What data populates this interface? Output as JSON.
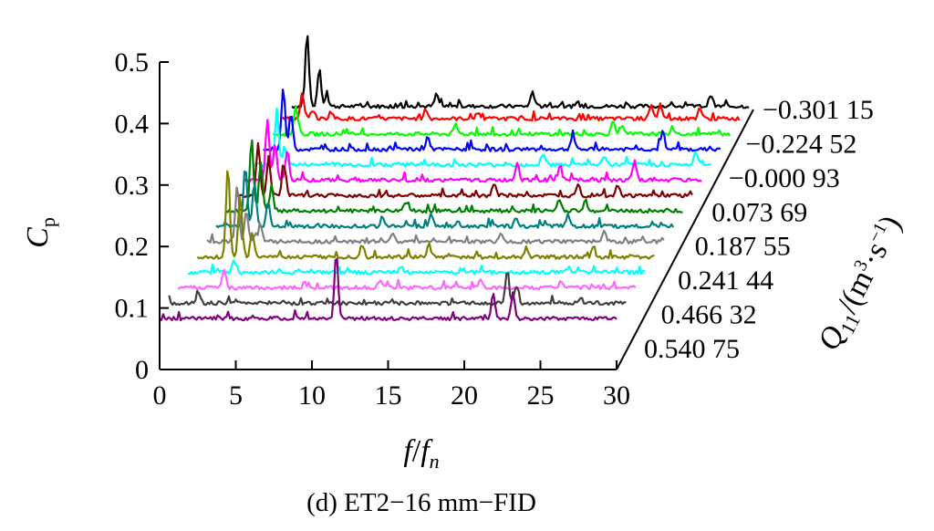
{
  "chart_data": {
    "type": "line",
    "subtype": "waterfall-3d",
    "caption": "(d) ET2−16 mm−FID",
    "xlabel": {
      "main": "f",
      "slash": "/",
      "italic_f": "f",
      "sub": "n"
    },
    "ylabel": {
      "main": "C",
      "sub": "p"
    },
    "zlabel": {
      "main": "Q",
      "sub": "11",
      "unit": "/(m",
      "sup1": "3",
      "mid": "·s",
      "sup2": "−1",
      "end": ")"
    },
    "xlim": [
      0,
      30
    ],
    "ylim": [
      0,
      0.5
    ],
    "xticks": [
      "0",
      "5",
      "10",
      "15",
      "20",
      "25",
      "30"
    ],
    "yticks": [
      "0",
      "0.1",
      "0.2",
      "0.3",
      "0.4",
      "0.5"
    ],
    "z_tick_labels": [
      "−0.301 15",
      "−0.224 52",
      "−0.000 93",
      "0.073 69",
      "0.187 55",
      "0.241 44",
      "0.466 32",
      "0.540 75"
    ],
    "series": [
      {
        "color": "#000000",
        "base": 0.425,
        "peaks": [
          [
            1.0,
            0.12
          ],
          [
            1.8,
            0.06
          ],
          [
            2.3,
            0.015
          ],
          [
            9.5,
            0.02
          ],
          [
            15.8,
            0.025
          ],
          [
            27.5,
            0.02
          ],
          [
            30.5,
            0.03
          ]
        ]
      },
      {
        "color": "#ff0000",
        "base": 0.405,
        "peaks": [
          [
            1.3,
            0.04
          ],
          [
            2.0,
            0.015
          ],
          [
            3.2,
            0.012
          ],
          [
            9.4,
            0.015
          ],
          [
            12.8,
            0.01
          ],
          [
            24.2,
            0.02
          ],
          [
            24.8,
            0.025
          ],
          [
            27.4,
            0.018
          ]
        ]
      },
      {
        "color": "#00ff00",
        "base": 0.38,
        "peaks": [
          [
            1.5,
            0.045
          ],
          [
            12.0,
            0.015
          ],
          [
            22.3,
            0.018
          ],
          [
            22.9,
            0.012
          ],
          [
            26.2,
            0.01
          ]
        ]
      },
      {
        "color": "#0000ff",
        "base": 0.355,
        "peaks": [
          [
            1.3,
            0.1
          ],
          [
            1.8,
            0.06
          ],
          [
            10.8,
            0.02
          ],
          [
            20.3,
            0.025
          ],
          [
            26.2,
            0.03
          ]
        ]
      },
      {
        "color": "#00ffff",
        "base": 0.33,
        "peaks": [
          [
            1.5,
            0.09
          ],
          [
            2.0,
            0.03
          ],
          [
            19.0,
            0.02
          ],
          [
            23.0,
            0.015
          ],
          [
            29.0,
            0.02
          ]
        ]
      },
      {
        "color": "#ff00ff",
        "base": 0.305,
        "peaks": [
          [
            1.5,
            0.1
          ],
          [
            2.0,
            0.06
          ],
          [
            2.8,
            0.05
          ],
          [
            17.9,
            0.03
          ],
          [
            20.7,
            0.025
          ],
          [
            25.6,
            0.03
          ]
        ]
      },
      {
        "color": "#800000",
        "base": 0.28,
        "peaks": [
          [
            1.5,
            0.08
          ],
          [
            2.2,
            0.06
          ],
          [
            3.2,
            0.05
          ],
          [
            17.0,
            0.02
          ],
          [
            22.5,
            0.02
          ],
          [
            25.1,
            0.018
          ]
        ]
      },
      {
        "color": "#008000",
        "base": 0.255,
        "peaks": [
          [
            1.7,
            0.12
          ],
          [
            2.3,
            0.08
          ],
          [
            3.0,
            0.04
          ],
          [
            11.8,
            0.015
          ],
          [
            21.9,
            0.02
          ],
          [
            23.6,
            0.018
          ]
        ]
      },
      {
        "color": "#008080",
        "base": 0.23,
        "peaks": [
          [
            1.9,
            0.1
          ],
          [
            2.5,
            0.07
          ],
          [
            3.4,
            0.04
          ],
          [
            10.9,
            0.015
          ],
          [
            14.1,
            0.02
          ],
          [
            19.7,
            0.015
          ],
          [
            23.1,
            0.02
          ]
        ]
      },
      {
        "color": "#808080",
        "base": 0.205,
        "peaks": [
          [
            2.0,
            0.09
          ],
          [
            2.6,
            0.05
          ],
          [
            3.5,
            0.03
          ],
          [
            12.2,
            0.015
          ],
          [
            19.3,
            0.015
          ],
          [
            26.1,
            0.015
          ]
        ]
      },
      {
        "color": "#808000",
        "base": 0.18,
        "peaks": [
          [
            2.0,
            0.15
          ],
          [
            2.8,
            0.1
          ],
          [
            3.6,
            0.04
          ],
          [
            10.8,
            0.02
          ],
          [
            15.2,
            0.02
          ],
          [
            21.6,
            0.015
          ],
          [
            26.0,
            0.015
          ]
        ]
      },
      {
        "color": "#00ffff",
        "base": 0.155,
        "peaks": [
          [
            3.0,
            0.02
          ],
          [
            14.0,
            0.01
          ],
          [
            25.0,
            0.008
          ]
        ]
      },
      {
        "color": "#ff66ff",
        "base": 0.13,
        "peaks": [
          [
            3.0,
            0.03
          ],
          [
            13.2,
            0.012
          ],
          [
            19.8,
            0.012
          ],
          [
            25.1,
            0.01
          ]
        ]
      },
      {
        "color": "#404040",
        "base": 0.105,
        "peaks": [
          [
            1.9,
            0.02
          ],
          [
            22.2,
            0.05
          ],
          [
            22.8,
            0.03
          ],
          [
            27.0,
            0.01
          ]
        ]
      },
      {
        "color": "#800080",
        "base": 0.08,
        "peaks": [
          [
            11.6,
            0.11
          ],
          [
            21.9,
            0.04
          ],
          [
            23.2,
            0.04
          ]
        ]
      }
    ]
  }
}
